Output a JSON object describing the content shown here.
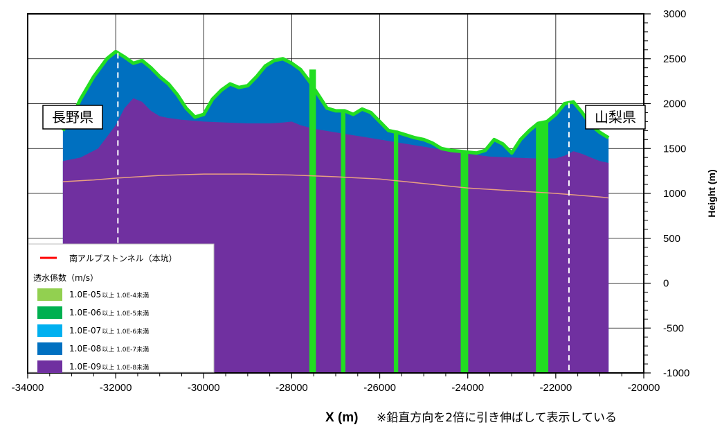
{
  "chart_data": {
    "type": "area",
    "xlabel": "X (m)",
    "ylabel": "Height (m)",
    "note": "※鉛直方向を2倍に引き伸ばして表示している",
    "xlim": [
      -34000,
      -20000
    ],
    "ylim": [
      -1000,
      3000
    ],
    "x_ticks": [
      -34000,
      -32000,
      -30000,
      -28000,
      -26000,
      -24000,
      -22000,
      -20000
    ],
    "x_tick_labels": [
      "-34000",
      "-32000",
      "-30000",
      "-28000",
      "-26000",
      "-24000",
      "-22000",
      "-20000"
    ],
    "y_ticks": [
      -1000,
      -500,
      0,
      500,
      1000,
      1500,
      2000,
      2500,
      3000
    ],
    "y_tick_labels": [
      "-1000",
      "-500",
      "0",
      "500",
      "1000",
      "1500",
      "2000",
      "2500",
      "3000"
    ],
    "grid": true,
    "colors": {
      "k5": "#92d050",
      "k6": "#00b050",
      "k7": "#00b0f0",
      "k8": "#0070c0",
      "k9": "#7030a0",
      "fault": "#22dd22",
      "tunnel": "#ff0000"
    },
    "surface": {
      "x": [
        -33200,
        -33000,
        -32800,
        -32500,
        -32200,
        -32000,
        -31800,
        -31600,
        -31400,
        -31200,
        -31000,
        -30800,
        -30600,
        -30400,
        -30200,
        -30000,
        -29800,
        -29600,
        -29400,
        -29200,
        -29000,
        -28800,
        -28600,
        -28400,
        -28200,
        -28000,
        -27800,
        -27600,
        -27400,
        -27200,
        -27000,
        -26800,
        -26600,
        -26400,
        -26200,
        -26000,
        -25800,
        -25600,
        -25400,
        -25200,
        -25000,
        -24800,
        -24600,
        -24400,
        -24200,
        -24000,
        -23800,
        -23600,
        -23400,
        -23200,
        -23000,
        -22800,
        -22600,
        -22400,
        -22200,
        -22000,
        -21800,
        -21600,
        -21400,
        -21200,
        -21000,
        -20800
      ],
      "y": [
        1700,
        1850,
        2050,
        2300,
        2500,
        2580,
        2520,
        2450,
        2480,
        2400,
        2300,
        2220,
        2100,
        1950,
        1850,
        1880,
        2050,
        2150,
        2220,
        2180,
        2200,
        2300,
        2420,
        2480,
        2500,
        2450,
        2380,
        2250,
        2100,
        1950,
        1920,
        1920,
        1880,
        1940,
        1900,
        1800,
        1700,
        1680,
        1650,
        1620,
        1600,
        1560,
        1500,
        1480,
        1470,
        1460,
        1450,
        1480,
        1600,
        1550,
        1450,
        1600,
        1700,
        1780,
        1800,
        1880,
        2000,
        2020,
        1900,
        1760,
        1680,
        1620
      ]
    },
    "layer_k9_top": {
      "x": [
        -33200,
        -32800,
        -32400,
        -32000,
        -31800,
        -31600,
        -31400,
        -31200,
        -31000,
        -30800,
        -30500,
        -30000,
        -29500,
        -29000,
        -28500,
        -28200,
        -28000,
        -27800,
        -27500,
        -27000,
        -26500,
        -26000,
        -25500,
        -25000,
        -24500,
        -24000,
        -23500,
        -23000,
        -22500,
        -22000,
        -21800,
        -21600,
        -21400,
        -21200,
        -21000,
        -20800
      ],
      "y": [
        1360,
        1400,
        1500,
        1760,
        1950,
        2060,
        2020,
        1920,
        1860,
        1840,
        1820,
        1800,
        1790,
        1780,
        1780,
        1790,
        1800,
        1760,
        1720,
        1680,
        1640,
        1600,
        1560,
        1520,
        1480,
        1440,
        1410,
        1400,
        1390,
        1390,
        1420,
        1470,
        1440,
        1400,
        1360,
        1340
      ]
    },
    "tunnel": {
      "x": [
        -33200,
        -32500,
        -32000,
        -31000,
        -30000,
        -29000,
        -28000,
        -27000,
        -26000,
        -25000,
        -24000,
        -23000,
        -22000,
        -21000,
        -20800
      ],
      "y": [
        1130,
        1150,
        1170,
        1200,
        1215,
        1215,
        1205,
        1185,
        1160,
        1110,
        1060,
        1030,
        1000,
        960,
        950
      ]
    },
    "faults": [
      {
        "x0": -27600,
        "x1": -27450,
        "y_bottom": -1000,
        "y_top": 2380
      },
      {
        "x0": -26880,
        "x1": -26780,
        "y_bottom": -1000,
        "y_top": 1920
      },
      {
        "x0": -25680,
        "x1": -25580,
        "y_bottom": -1000,
        "y_top": 1700
      },
      {
        "x0": -24160,
        "x1": -23990,
        "y_bottom": -1000,
        "y_top": 1460
      },
      {
        "x0": -22450,
        "x1": -22170,
        "y_bottom": -1000,
        "y_top": 1760
      }
    ],
    "prefectures": [
      {
        "name": "長野県",
        "x": -31950,
        "label_x": -33500,
        "label_y": 1870
      },
      {
        "name": "山梨県",
        "x": -21700,
        "label_x": -21300,
        "label_y": 1870
      }
    ],
    "legend": {
      "tunnel_label": "南アルプストンネル（本坑）",
      "title": "透水係数（m/s）",
      "entries": [
        {
          "key": "k5",
          "main": "1.0E-05",
          "sub": "以上 1.0E-4未満"
        },
        {
          "key": "k6",
          "main": "1.0E-06",
          "sub": "以上 1.0E-5未満"
        },
        {
          "key": "k7",
          "main": "1.0E-07",
          "sub": "以上 1.0E-6未満"
        },
        {
          "key": "k8",
          "main": "1.0E-08",
          "sub": "以上 1.0E-7未満"
        },
        {
          "key": "k9",
          "main": "1.0E-09",
          "sub": "以上 1.0E-8未満"
        }
      ]
    }
  }
}
